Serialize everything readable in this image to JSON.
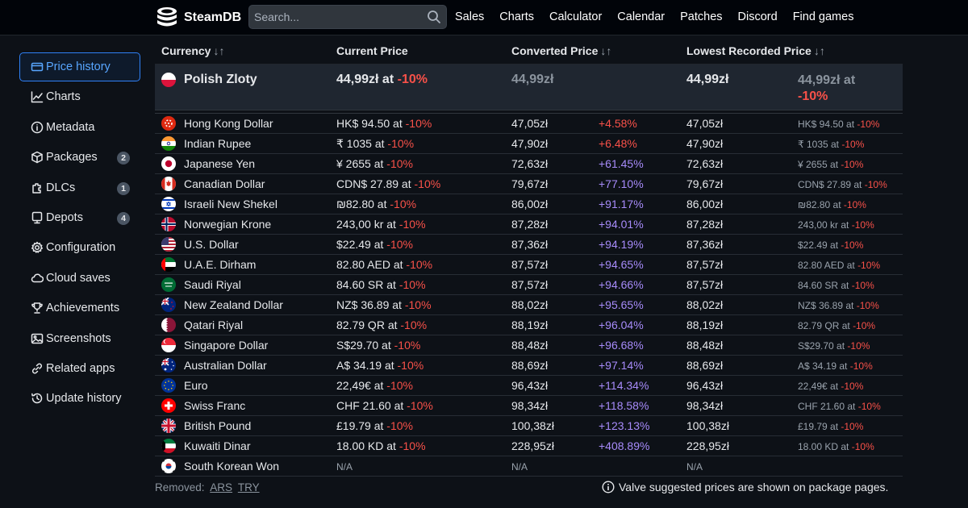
{
  "header": {
    "brand": "SteamDB",
    "search_placeholder": "Search...",
    "nav": [
      "Sales",
      "Charts",
      "Calculator",
      "Calendar",
      "Patches",
      "Discord",
      "Find games"
    ]
  },
  "sidebar": {
    "items": [
      {
        "label": "Price history",
        "icon": "price-history-icon",
        "active": true,
        "badge": ""
      },
      {
        "label": "Charts",
        "icon": "chart-icon",
        "active": false,
        "badge": ""
      },
      {
        "label": "Metadata",
        "icon": "info-icon",
        "active": false,
        "badge": ""
      },
      {
        "label": "Packages",
        "icon": "package-icon",
        "active": false,
        "badge": "2"
      },
      {
        "label": "DLCs",
        "icon": "dlc-icon",
        "active": false,
        "badge": "1"
      },
      {
        "label": "Depots",
        "icon": "depot-icon",
        "active": false,
        "badge": "4"
      },
      {
        "label": "Configuration",
        "icon": "gear-icon",
        "active": false,
        "badge": ""
      },
      {
        "label": "Cloud saves",
        "icon": "cloud-icon",
        "active": false,
        "badge": ""
      },
      {
        "label": "Achievements",
        "icon": "trophy-icon",
        "active": false,
        "badge": ""
      },
      {
        "label": "Screenshots",
        "icon": "image-icon",
        "active": false,
        "badge": ""
      },
      {
        "label": "Related apps",
        "icon": "link-icon",
        "active": false,
        "badge": ""
      },
      {
        "label": "Update history",
        "icon": "history-icon",
        "active": false,
        "badge": ""
      }
    ]
  },
  "table": {
    "columns": [
      "Currency",
      "Current Price",
      "Converted Price",
      "Lowest Recorded Price"
    ],
    "sort_glyph": "↓↑",
    "highlight": {
      "currency": "Polish Zloty",
      "current_price": "44,99zł at",
      "current_discount": "-10%",
      "converted": "44,99zł",
      "lowest": "44,99zł",
      "lowest_detail_line1": "44,99zł at",
      "lowest_detail_line2": "-10%"
    },
    "rows": [
      {
        "currency": "Hong Kong Dollar",
        "flag": "hk",
        "price": "HK$ 94.50 at",
        "discount": "-10%",
        "converted": "47,05zł",
        "diff": "+4.58%",
        "diff_color": "red",
        "lowest": "47,05zł",
        "lowest_detail": "HK$ 94.50 at",
        "lowest_discount": "-10%"
      },
      {
        "currency": "Indian Rupee",
        "flag": "in",
        "price": "₹ 1035 at",
        "discount": "-10%",
        "converted": "47,90zł",
        "diff": "+6.48%",
        "diff_color": "red",
        "lowest": "47,90zł",
        "lowest_detail": "₹ 1035 at",
        "lowest_discount": "-10%"
      },
      {
        "currency": "Japanese Yen",
        "flag": "jp",
        "price": "¥ 2655 at",
        "discount": "-10%",
        "converted": "72,63zł",
        "diff": "+61.45%",
        "diff_color": "purple",
        "lowest": "72,63zł",
        "lowest_detail": "¥ 2655 at",
        "lowest_discount": "-10%"
      },
      {
        "currency": "Canadian Dollar",
        "flag": "ca",
        "price": "CDN$ 27.89 at",
        "discount": "-10%",
        "converted": "79,67zł",
        "diff": "+77.10%",
        "diff_color": "purple",
        "lowest": "79,67zł",
        "lowest_detail": "CDN$ 27.89 at",
        "lowest_discount": "-10%"
      },
      {
        "currency": "Israeli New Shekel",
        "flag": "il",
        "price": "₪82.80 at",
        "discount": "-10%",
        "converted": "86,00zł",
        "diff": "+91.17%",
        "diff_color": "purple",
        "lowest": "86,00zł",
        "lowest_detail": "₪82.80 at",
        "lowest_discount": "-10%"
      },
      {
        "currency": "Norwegian Krone",
        "flag": "no",
        "price": "243,00 kr at",
        "discount": "-10%",
        "converted": "87,28zł",
        "diff": "+94.01%",
        "diff_color": "purple",
        "lowest": "87,28zł",
        "lowest_detail": "243,00 kr at",
        "lowest_discount": "-10%"
      },
      {
        "currency": "U.S. Dollar",
        "flag": "us",
        "price": "$22.49 at",
        "discount": "-10%",
        "converted": "87,36zł",
        "diff": "+94.19%",
        "diff_color": "purple",
        "lowest": "87,36zł",
        "lowest_detail": "$22.49 at",
        "lowest_discount": "-10%"
      },
      {
        "currency": "U.A.E. Dirham",
        "flag": "ae",
        "price": "82.80 AED at",
        "discount": "-10%",
        "converted": "87,57zł",
        "diff": "+94.65%",
        "diff_color": "purple",
        "lowest": "87,57zł",
        "lowest_detail": "82.80 AED at",
        "lowest_discount": "-10%"
      },
      {
        "currency": "Saudi Riyal",
        "flag": "sa",
        "price": "84.60 SR at",
        "discount": "-10%",
        "converted": "87,57zł",
        "diff": "+94.66%",
        "diff_color": "purple",
        "lowest": "87,57zł",
        "lowest_detail": "84.60 SR at",
        "lowest_discount": "-10%"
      },
      {
        "currency": "New Zealand Dollar",
        "flag": "nz",
        "price": "NZ$ 36.89 at",
        "discount": "-10%",
        "converted": "88,02zł",
        "diff": "+95.65%",
        "diff_color": "purple",
        "lowest": "88,02zł",
        "lowest_detail": "NZ$ 36.89 at",
        "lowest_discount": "-10%"
      },
      {
        "currency": "Qatari Riyal",
        "flag": "qa",
        "price": "82.79 QR at",
        "discount": "-10%",
        "converted": "88,19zł",
        "diff": "+96.04%",
        "diff_color": "purple",
        "lowest": "88,19zł",
        "lowest_detail": "82.79 QR at",
        "lowest_discount": "-10%"
      },
      {
        "currency": "Singapore Dollar",
        "flag": "sg",
        "price": "S$29.70 at",
        "discount": "-10%",
        "converted": "88,48zł",
        "diff": "+96.68%",
        "diff_color": "purple",
        "lowest": "88,48zł",
        "lowest_detail": "S$29.70 at",
        "lowest_discount": "-10%"
      },
      {
        "currency": "Australian Dollar",
        "flag": "au",
        "price": "A$ 34.19 at",
        "discount": "-10%",
        "converted": "88,69zł",
        "diff": "+97.14%",
        "diff_color": "purple",
        "lowest": "88,69zł",
        "lowest_detail": "A$ 34.19 at",
        "lowest_discount": "-10%"
      },
      {
        "currency": "Euro",
        "flag": "eu",
        "price": "22,49€ at",
        "discount": "-10%",
        "converted": "96,43zł",
        "diff": "+114.34%",
        "diff_color": "purple",
        "lowest": "96,43zł",
        "lowest_detail": "22,49€ at",
        "lowest_discount": "-10%"
      },
      {
        "currency": "Swiss Franc",
        "flag": "ch",
        "price": "CHF 21.60 at",
        "discount": "-10%",
        "converted": "98,34zł",
        "diff": "+118.58%",
        "diff_color": "purple",
        "lowest": "98,34zł",
        "lowest_detail": "CHF 21.60 at",
        "lowest_discount": "-10%"
      },
      {
        "currency": "British Pound",
        "flag": "gb",
        "price": "£19.79 at",
        "discount": "-10%",
        "converted": "100,38zł",
        "diff": "+123.13%",
        "diff_color": "purple",
        "lowest": "100,38zł",
        "lowest_detail": "£19.79 at",
        "lowest_discount": "-10%"
      },
      {
        "currency": "Kuwaiti Dinar",
        "flag": "kw",
        "price": "18.00 KD at",
        "discount": "-10%",
        "converted": "228,95zł",
        "diff": "+408.89%",
        "diff_color": "purple",
        "lowest": "228,95zł",
        "lowest_detail": "18.00 KD at",
        "lowest_discount": "-10%"
      },
      {
        "currency": "South Korean Won",
        "flag": "kr",
        "price": "N/A",
        "discount": "",
        "converted": "N/A",
        "diff": "",
        "diff_color": "purple",
        "lowest": "N/A",
        "lowest_detail": "",
        "lowest_discount": ""
      }
    ]
  },
  "footer": {
    "removed_label": "Removed:",
    "removed_items": [
      "ARS",
      "TRY"
    ],
    "note": "Valve suggested prices are shown on package pages."
  },
  "colors": {
    "accent": "#2f81f7",
    "discount_red": "#f85149",
    "diff_red": "#f85149",
    "diff_purple": "#a78bfa",
    "background": "#0d1117"
  }
}
